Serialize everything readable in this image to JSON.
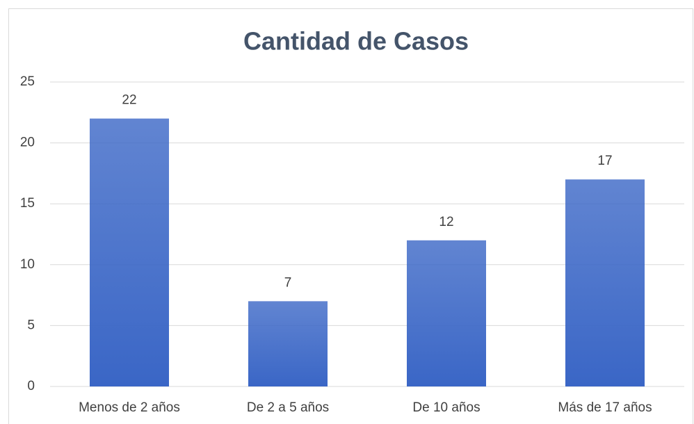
{
  "chart_data": {
    "type": "bar",
    "title": "Cantidad de Casos",
    "categories": [
      "Menos de 2 años",
      "De 2 a 5 años",
      "De 10 años",
      "Más de 17 años"
    ],
    "values": [
      22,
      7,
      12,
      17
    ],
    "color": "#3a66c6",
    "ylim": [
      0,
      25
    ],
    "yticks": [
      0,
      5,
      10,
      15,
      20,
      25
    ],
    "grid": true
  }
}
